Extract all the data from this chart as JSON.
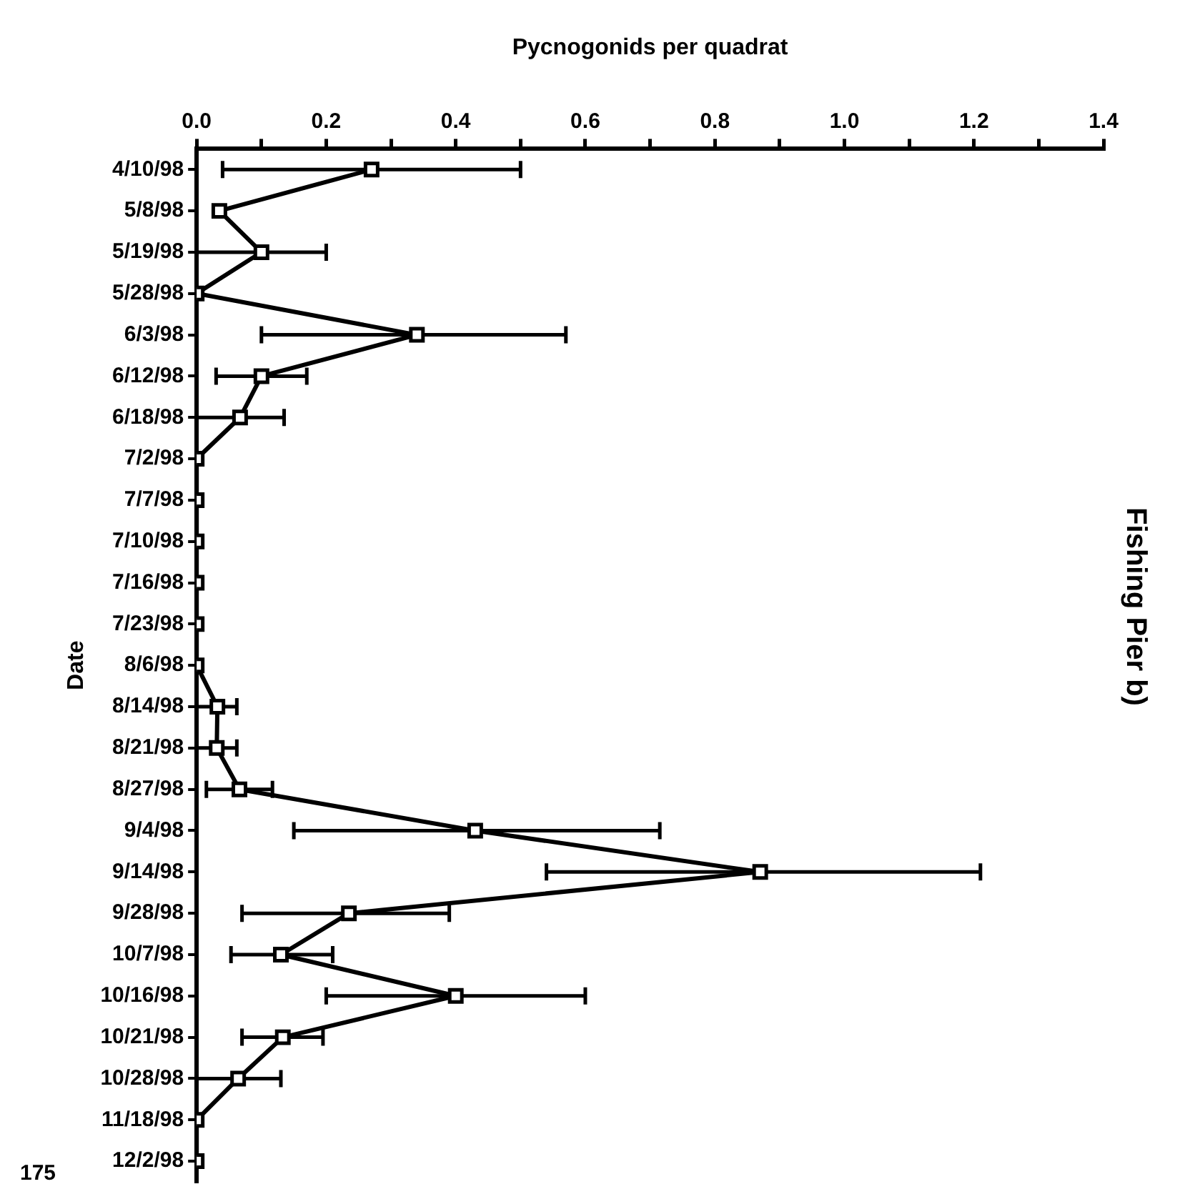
{
  "chart_data": {
    "type": "line",
    "orientation": "horizontal",
    "title": "Fishing Pier b)",
    "xlabel": "Pycnogonids per quadrat",
    "ylabel": "Date",
    "categories": [
      "4/10/98",
      "5/8/98",
      "5/19/98",
      "5/28/98",
      "6/3/98",
      "6/12/98",
      "6/18/98",
      "7/2/98",
      "7/7/98",
      "7/10/98",
      "7/16/98",
      "7/23/98",
      "8/6/98",
      "8/14/98",
      "8/21/98",
      "8/27/98",
      "9/4/98",
      "9/14/98",
      "9/28/98",
      "10/7/98",
      "10/16/98",
      "10/21/98",
      "10/28/98",
      "11/18/98",
      "12/2/98"
    ],
    "series": [
      {
        "color": "#000000",
        "values": [
          0.27,
          0.035,
          0.1,
          0,
          0.34,
          0.1,
          0.067,
          0,
          0,
          0,
          0,
          0,
          0,
          0.032,
          0.031,
          0.066,
          0.43,
          0.87,
          0.235,
          0.13,
          0.4,
          0.133,
          0.064,
          0,
          0
        ],
        "errors": [
          [
            0.04,
            0.5
          ],
          null,
          [
            0,
            0.2
          ],
          null,
          [
            0.1,
            0.57
          ],
          [
            0.03,
            0.17
          ],
          [
            0,
            0.135
          ],
          null,
          null,
          null,
          null,
          null,
          null,
          [
            0,
            0.062
          ],
          [
            0,
            0.062
          ],
          [
            0.015,
            0.117
          ],
          [
            0.15,
            0.715
          ],
          [
            0.54,
            1.21
          ],
          [
            0.07,
            0.39
          ],
          [
            0.053,
            0.21
          ],
          [
            0.2,
            0.6
          ],
          [
            0.07,
            0.195
          ],
          [
            0,
            0.13
          ],
          null,
          null
        ]
      }
    ],
    "xlim": [
      0,
      1.4
    ],
    "xticks": [
      {
        "value": 0,
        "label": "0.0"
      },
      {
        "value": 0.1,
        "label": null
      },
      {
        "value": 0.2,
        "label": "0.2"
      },
      {
        "value": 0.3,
        "label": null
      },
      {
        "value": 0.4,
        "label": "0.4"
      },
      {
        "value": 0.5,
        "label": null
      },
      {
        "value": 0.6,
        "label": "0.6"
      },
      {
        "value": 0.7,
        "label": null
      },
      {
        "value": 0.8,
        "label": "0.8"
      },
      {
        "value": 0.9,
        "label": null
      },
      {
        "value": 1.0,
        "label": "1.0"
      },
      {
        "value": 1.1,
        "label": null
      },
      {
        "value": 1.2,
        "label": "1.2"
      },
      {
        "value": 1.3,
        "label": null
      },
      {
        "value": 1.4,
        "label": "1.4"
      }
    ],
    "marker": "square",
    "line_style": "solid",
    "annotations": [
      "175"
    ]
  }
}
